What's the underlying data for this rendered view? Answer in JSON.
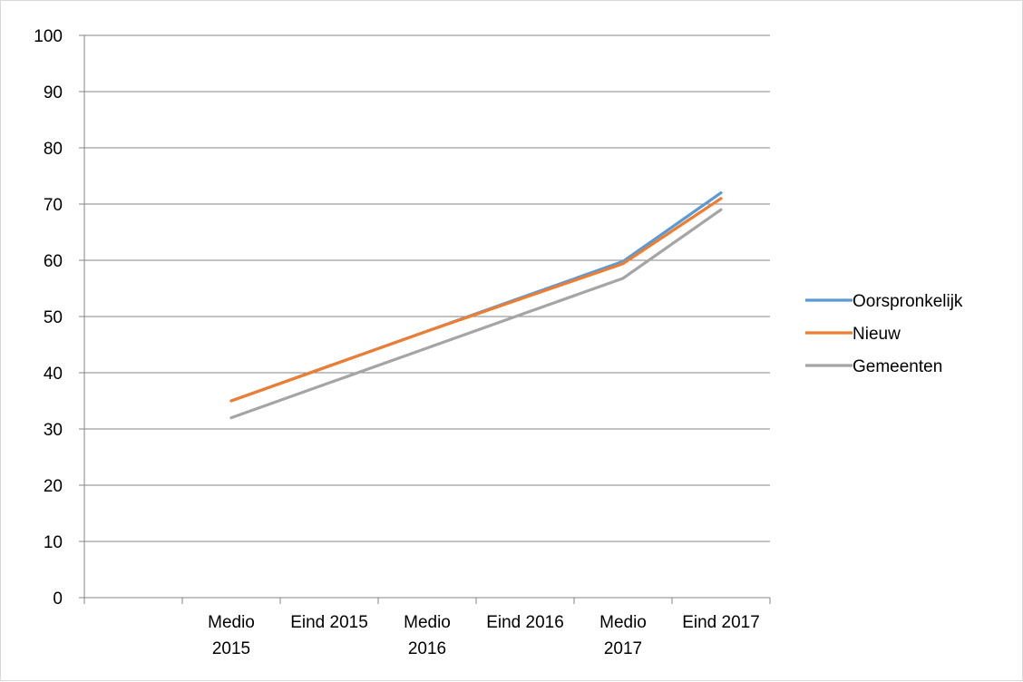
{
  "chart_data": {
    "type": "line",
    "categories": [
      "",
      "Medio 2015",
      "Eind 2015",
      "Medio 2016",
      "Eind 2016",
      "Medio 2017",
      "Eind 2017"
    ],
    "x_tick_label_lines": [
      [],
      [
        "Medio",
        "2015"
      ],
      [
        "Eind 2015"
      ],
      [
        "Medio",
        "2016"
      ],
      [
        "Eind 2016"
      ],
      [
        "Medio",
        "2017"
      ],
      [
        "Eind 2017"
      ]
    ],
    "y_ticks": [
      0,
      10,
      20,
      30,
      40,
      50,
      60,
      70,
      80,
      90,
      100
    ],
    "ylim": [
      0,
      100
    ],
    "grid": true,
    "legend_position": "right",
    "series": [
      {
        "name": "Oorspronkelijk",
        "color": "#5b9bd5",
        "values": [
          null,
          35,
          41.2,
          47.4,
          53.6,
          59.8,
          72
        ]
      },
      {
        "name": "Nieuw",
        "color": "#ed7d31",
        "values": [
          null,
          35,
          41.2,
          47.4,
          53.4,
          59.4,
          71
        ]
      },
      {
        "name": "Gemeenten",
        "color": "#a5a5a5",
        "values": [
          null,
          32,
          38.2,
          44.4,
          50.6,
          56.8,
          69
        ]
      }
    ],
    "line_start": {
      "Oorspronkelijk": 35,
      "Nieuw": 35,
      "Gemeenten": 32
    },
    "line_end": {
      "Oorspronkelijk": 72,
      "Nieuw": 71,
      "Gemeenten": 69
    }
  }
}
